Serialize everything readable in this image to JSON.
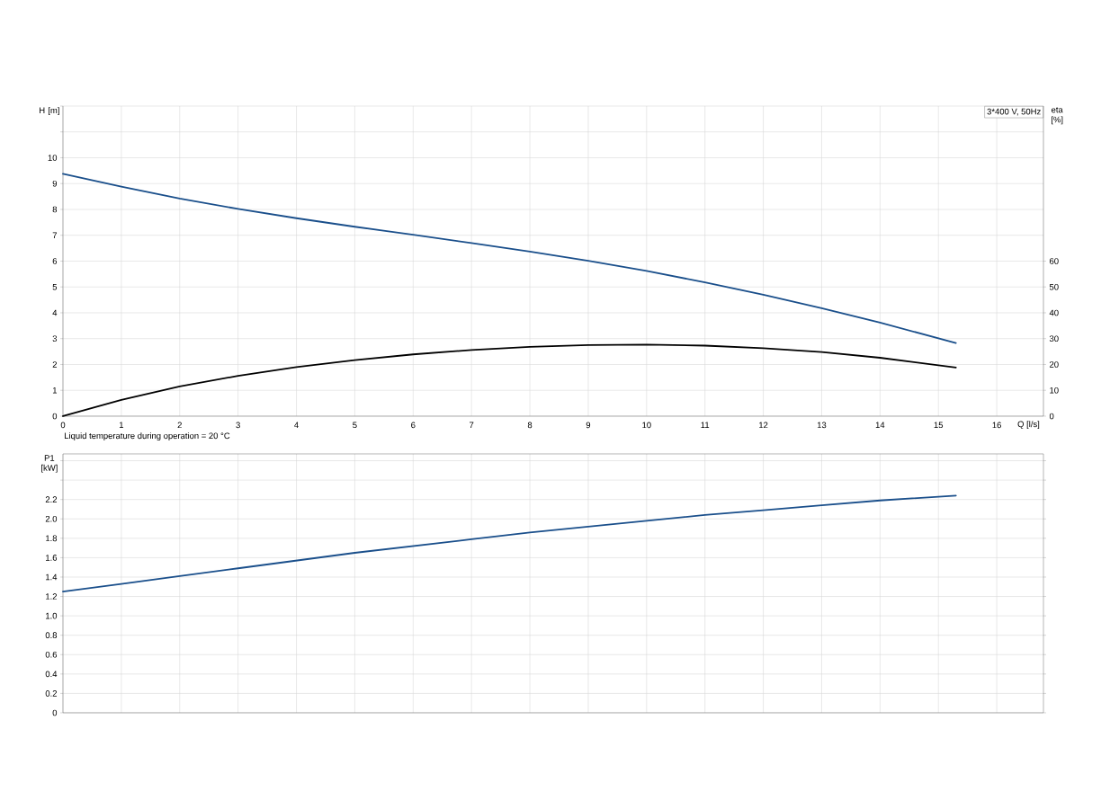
{
  "chart_data": [
    {
      "type": "line",
      "xlabel": "Q [l/s]",
      "ylabel": "H [m]",
      "y2label": "eta [%]",
      "annotations": [
        "3*400 V, 50Hz",
        "Liquid temperature during operation = 20 °C"
      ],
      "x": [
        0,
        1,
        2,
        3,
        4,
        5,
        6,
        7,
        8,
        9,
        10,
        11,
        12,
        13,
        14,
        15.3
      ],
      "series": [
        {
          "color": "#1a4f8b",
          "values": [
            9.38,
            8.88,
            8.42,
            8.02,
            7.66,
            7.33,
            7.02,
            6.7,
            6.37,
            6.01,
            5.62,
            5.18,
            4.7,
            4.18,
            3.62,
            2.83
          ]
        },
        {
          "color": "#000000",
          "axis": "y2",
          "values": [
            0,
            6.3,
            11.5,
            15.6,
            19.0,
            21.7,
            23.9,
            25.6,
            26.8,
            27.5,
            27.7,
            27.3,
            26.3,
            24.8,
            22.6,
            18.8
          ]
        }
      ],
      "xlim": [
        0,
        16.8
      ],
      "xticks": [
        0,
        1,
        2,
        3,
        4,
        5,
        6,
        7,
        8,
        9,
        10,
        11,
        12,
        13,
        14,
        15,
        16
      ],
      "ylim": [
        0,
        12
      ],
      "yticks": [
        0,
        1,
        2,
        3,
        4,
        5,
        6,
        7,
        8,
        9,
        10,
        {
          "value": 11,
          "label": null
        },
        {
          "value": 12,
          "label": null
        }
      ],
      "y2lim": [
        0,
        120
      ],
      "y2ticks": [
        0,
        10,
        20,
        30,
        40,
        50,
        60
      ],
      "grid": true
    },
    {
      "type": "line",
      "ylabel": "P1 [kW]",
      "x": [
        0,
        1,
        2,
        3,
        4,
        5,
        6,
        7,
        8,
        9,
        10,
        11,
        12,
        13,
        14,
        15.3
      ],
      "series": [
        {
          "color": "#1a4f8b",
          "values": [
            1.25,
            1.33,
            1.41,
            1.49,
            1.57,
            1.65,
            1.72,
            1.79,
            1.86,
            1.92,
            1.98,
            2.04,
            2.09,
            2.14,
            2.19,
            2.24
          ]
        }
      ],
      "xlim": [
        0,
        16.8
      ],
      "xticks": [
        0,
        1,
        2,
        3,
        4,
        5,
        6,
        7,
        8,
        9,
        10,
        11,
        12,
        13,
        14,
        15,
        16
      ],
      "ylim": [
        0,
        2.67
      ],
      "yticks": [
        0,
        0.2,
        0.4,
        0.6,
        0.8,
        {
          "value": 1.0,
          "label": "1.0"
        },
        1.2,
        1.4,
        1.6,
        1.8,
        {
          "value": 2.0,
          "label": "2.0"
        },
        2.2,
        {
          "value": 2.4,
          "label": null
        },
        {
          "value": 2.6,
          "label": null
        }
      ],
      "tick_labels": "y",
      "grid": true
    }
  ]
}
